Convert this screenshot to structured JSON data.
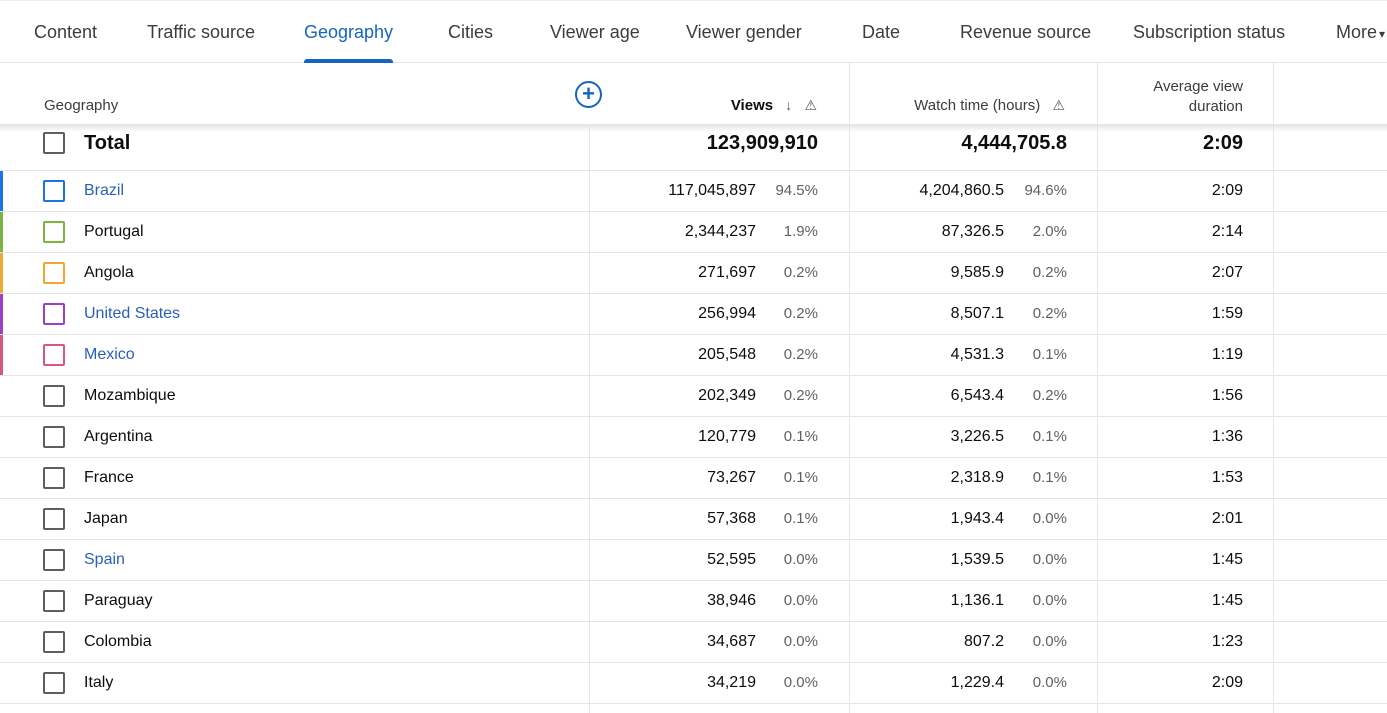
{
  "tabs": [
    {
      "label": "Content",
      "active": false
    },
    {
      "label": "Traffic source",
      "active": false
    },
    {
      "label": "Geography",
      "active": true
    },
    {
      "label": "Cities",
      "active": false
    },
    {
      "label": "Viewer age",
      "active": false
    },
    {
      "label": "Viewer gender",
      "active": false
    },
    {
      "label": "Date",
      "active": false
    },
    {
      "label": "Revenue source",
      "active": false
    },
    {
      "label": "Subscription status",
      "active": false
    },
    {
      "label": "More",
      "active": false
    }
  ],
  "header": {
    "geography": "Geography",
    "views": "Views",
    "watch_time": "Watch time (hours)",
    "avg_duration_line1": "Average view",
    "avg_duration_line2": "duration",
    "sort_icon": "arrow-down-icon",
    "warning_icon": "warning-icon",
    "add_icon": "add-column-icon"
  },
  "total": {
    "label": "Total",
    "views": "123,909,910",
    "watch_time": "4,444,705.8",
    "avg_duration": "2:09"
  },
  "colors": {
    "accent": "#1565c0",
    "link": "#2a5fb8"
  },
  "rows": [
    {
      "name": "Brazil",
      "link": true,
      "color": "#1a73e8",
      "views": "117,045,897",
      "views_pct": "94.5%",
      "watch": "4,204,860.5",
      "watch_pct": "94.6%",
      "avg": "2:09"
    },
    {
      "name": "Portugal",
      "link": false,
      "color": "#7cb342",
      "views": "2,344,237",
      "views_pct": "1.9%",
      "watch": "87,326.5",
      "watch_pct": "2.0%",
      "avg": "2:14"
    },
    {
      "name": "Angola",
      "link": false,
      "color": "#f0a830",
      "views": "271,697",
      "views_pct": "0.2%",
      "watch": "9,585.9",
      "watch_pct": "0.2%",
      "avg": "2:07"
    },
    {
      "name": "United States",
      "link": true,
      "color": "#9c3ec8",
      "views": "256,994",
      "views_pct": "0.2%",
      "watch": "8,507.1",
      "watch_pct": "0.2%",
      "avg": "1:59"
    },
    {
      "name": "Mexico",
      "link": true,
      "color": "#d9577a",
      "views": "205,548",
      "views_pct": "0.2%",
      "watch": "4,531.3",
      "watch_pct": "0.1%",
      "avg": "1:19"
    },
    {
      "name": "Mozambique",
      "link": false,
      "color": "",
      "views": "202,349",
      "views_pct": "0.2%",
      "watch": "6,543.4",
      "watch_pct": "0.2%",
      "avg": "1:56"
    },
    {
      "name": "Argentina",
      "link": false,
      "color": "",
      "views": "120,779",
      "views_pct": "0.1%",
      "watch": "3,226.5",
      "watch_pct": "0.1%",
      "avg": "1:36"
    },
    {
      "name": "France",
      "link": false,
      "color": "",
      "views": "73,267",
      "views_pct": "0.1%",
      "watch": "2,318.9",
      "watch_pct": "0.1%",
      "avg": "1:53"
    },
    {
      "name": "Japan",
      "link": false,
      "color": "",
      "views": "57,368",
      "views_pct": "0.1%",
      "watch": "1,943.4",
      "watch_pct": "0.0%",
      "avg": "2:01"
    },
    {
      "name": "Spain",
      "link": true,
      "color": "",
      "views": "52,595",
      "views_pct": "0.0%",
      "watch": "1,539.5",
      "watch_pct": "0.0%",
      "avg": "1:45"
    },
    {
      "name": "Paraguay",
      "link": false,
      "color": "",
      "views": "38,946",
      "views_pct": "0.0%",
      "watch": "1,136.1",
      "watch_pct": "0.0%",
      "avg": "1:45"
    },
    {
      "name": "Colombia",
      "link": false,
      "color": "",
      "views": "34,687",
      "views_pct": "0.0%",
      "watch": "807.2",
      "watch_pct": "0.0%",
      "avg": "1:23"
    },
    {
      "name": "Italy",
      "link": false,
      "color": "",
      "views": "34,219",
      "views_pct": "0.0%",
      "watch": "1,229.4",
      "watch_pct": "0.0%",
      "avg": "2:09"
    }
  ]
}
